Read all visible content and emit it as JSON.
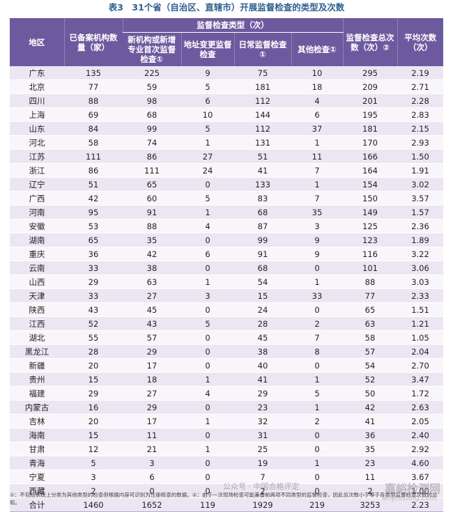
{
  "title": "表3　31个省（自治区、直辖市）开展监督检查的类型及次数",
  "headers": {
    "region": "地区",
    "filed_count": "已备案机构数量（家）",
    "group": "监督检查类型（次）",
    "new_first": "新机构或新增专业首次监督检查①",
    "address_change": "地址变更监督检查",
    "routine": "日常监督检查①",
    "other": "其他检查①",
    "total_times": "监督检查总次数（次）②",
    "avg_times": "平均次数（次）"
  },
  "rows": [
    [
      "广东",
      "135",
      "225",
      "9",
      "75",
      "10",
      "295",
      "2.19"
    ],
    [
      "北京",
      "77",
      "59",
      "5",
      "181",
      "18",
      "209",
      "2.71"
    ],
    [
      "四川",
      "88",
      "98",
      "6",
      "112",
      "4",
      "201",
      "2.28"
    ],
    [
      "上海",
      "69",
      "68",
      "10",
      "144",
      "6",
      "195",
      "2.83"
    ],
    [
      "山东",
      "84",
      "99",
      "5",
      "112",
      "37",
      "181",
      "2.15"
    ],
    [
      "河北",
      "58",
      "74",
      "1",
      "131",
      "1",
      "170",
      "2.93"
    ],
    [
      "江苏",
      "111",
      "86",
      "27",
      "51",
      "11",
      "166",
      "1.50"
    ],
    [
      "浙江",
      "86",
      "111",
      "24",
      "41",
      "7",
      "164",
      "1.91"
    ],
    [
      "辽宁",
      "51",
      "65",
      "0",
      "133",
      "1",
      "154",
      "3.02"
    ],
    [
      "广西",
      "42",
      "60",
      "5",
      "83",
      "7",
      "150",
      "3.57"
    ],
    [
      "河南",
      "95",
      "91",
      "1",
      "68",
      "35",
      "149",
      "1.57"
    ],
    [
      "安徽",
      "53",
      "88",
      "4",
      "87",
      "3",
      "125",
      "2.36"
    ],
    [
      "湖南",
      "65",
      "35",
      "0",
      "99",
      "9",
      "123",
      "1.89"
    ],
    [
      "重庆",
      "36",
      "42",
      "6",
      "91",
      "9",
      "116",
      "3.22"
    ],
    [
      "云南",
      "33",
      "38",
      "0",
      "68",
      "0",
      "101",
      "3.06"
    ],
    [
      "山西",
      "29",
      "63",
      "1",
      "54",
      "1",
      "88",
      "3.03"
    ],
    [
      "天津",
      "33",
      "27",
      "3",
      "15",
      "33",
      "77",
      "2.33"
    ],
    [
      "陕西",
      "43",
      "45",
      "0",
      "24",
      "0",
      "65",
      "1.51"
    ],
    [
      "江西",
      "52",
      "43",
      "5",
      "28",
      "2",
      "63",
      "1.21"
    ],
    [
      "湖北",
      "55",
      "57",
      "0",
      "45",
      "7",
      "58",
      "1.05"
    ],
    [
      "黑龙江",
      "28",
      "29",
      "0",
      "38",
      "8",
      "57",
      "2.04"
    ],
    [
      "新疆",
      "20",
      "17",
      "0",
      "40",
      "0",
      "54",
      "2.70"
    ],
    [
      "贵州",
      "15",
      "18",
      "1",
      "41",
      "1",
      "52",
      "3.47"
    ],
    [
      "福建",
      "29",
      "27",
      "4",
      "29",
      "5",
      "50",
      "1.72"
    ],
    [
      "内蒙古",
      "16",
      "29",
      "0",
      "23",
      "1",
      "42",
      "2.63"
    ],
    [
      "吉林",
      "20",
      "17",
      "1",
      "32",
      "2",
      "41",
      "2.05"
    ],
    [
      "海南",
      "15",
      "11",
      "0",
      "31",
      "0",
      "36",
      "2.40"
    ],
    [
      "甘肃",
      "12",
      "21",
      "1",
      "25",
      "0",
      "35",
      "2.92"
    ],
    [
      "青海",
      "5",
      "3",
      "0",
      "19",
      "1",
      "23",
      "4.60"
    ],
    [
      "宁夏",
      "3",
      "6",
      "0",
      "7",
      "0",
      "11",
      "3.67"
    ],
    [
      "西藏",
      "2",
      "0",
      "0",
      "2",
      "0",
      "2",
      "1.00"
    ]
  ],
  "total": [
    "合计",
    "1460",
    "1652",
    "119",
    "1929",
    "219",
    "3253",
    "2.23"
  ],
  "footnote": "①：不包括系统上分类为其他类型的检查但根据内容可识别为注册核查的数据。②：由于一次现场检查可能兼备前两项不同类型的监督检查，因此总次数小于等于各类型监督检查次数的总和。",
  "watermark": "公众号 · 中国合格评定",
  "watermark2": "嘉峪检测网",
  "watermark3": "anytesting.com"
}
